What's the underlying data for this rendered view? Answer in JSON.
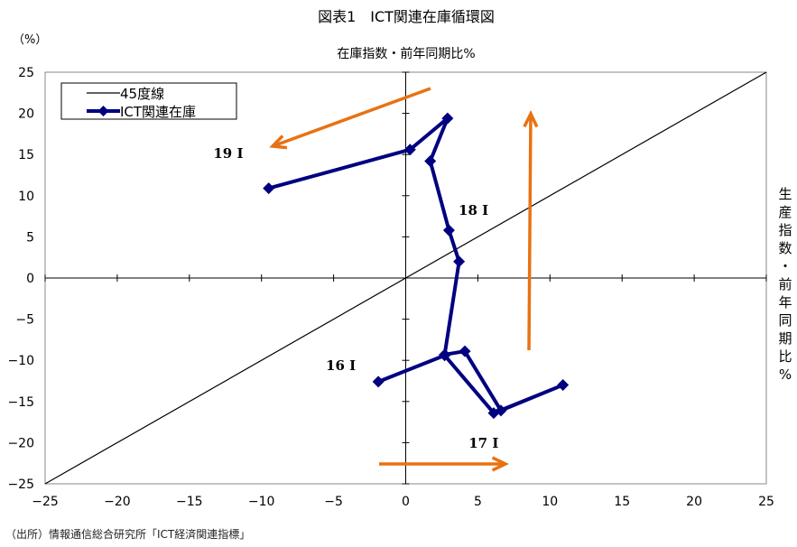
{
  "chart_data": {
    "type": "scatter",
    "title": "図表1　ICT関連在庫循環図",
    "y_unit": "（%）",
    "xlabel": "在庫指数・前年同期比%",
    "ylabel": "生産指数・前年同期比%",
    "xlim": [
      -25,
      25
    ],
    "ylim": [
      -25,
      25
    ],
    "x_ticks": [
      -25,
      -20,
      -15,
      -10,
      -5,
      0,
      5,
      10,
      15,
      20,
      25
    ],
    "y_ticks": [
      -25,
      -20,
      -15,
      -10,
      -5,
      0,
      5,
      10,
      15,
      20,
      25
    ],
    "x_tick_labels": [
      "−25",
      "−20",
      "−15",
      "−10",
      "−5",
      "0",
      "5",
      "10",
      "15",
      "20",
      "25"
    ],
    "y_tick_labels": [
      "−25",
      "−20",
      "−15",
      "−10",
      "−5",
      "0",
      "5",
      "10",
      "15",
      "20",
      "25"
    ],
    "legend": {
      "placement": "top-left",
      "entries": [
        "45度線",
        "ICT関連在庫"
      ]
    },
    "series": [
      {
        "name": "45度線",
        "kind": "line",
        "color": "#000000",
        "x": [
          -25,
          25
        ],
        "y": [
          -25,
          25
        ]
      },
      {
        "name": "ICT関連在庫",
        "kind": "line-markers",
        "color": "#000080",
        "x": [
          -1.9,
          2.7,
          6.1,
          10.9,
          6.6,
          4.1,
          2.7,
          3.7,
          3.0,
          1.7,
          2.9,
          0.3,
          -9.5
        ],
        "y": [
          -12.6,
          -9.4,
          -16.4,
          -13.0,
          -16.1,
          -8.9,
          -9.3,
          2.0,
          5.8,
          14.2,
          19.4,
          15.6,
          10.9
        ]
      }
    ],
    "annotations": [
      {
        "text": "16 I",
        "x": -4.5,
        "y": -11.2
      },
      {
        "text": "17 I",
        "x": 5.4,
        "y": -20.6
      },
      {
        "text": "18 I",
        "x": 4.7,
        "y": 7.7
      },
      {
        "text": "19 I",
        "x": -12.3,
        "y": 14.6
      }
    ],
    "arrows_color": "#e87213"
  },
  "source": "（出所）情報通信総合研究所「ICT経済関連指標」"
}
